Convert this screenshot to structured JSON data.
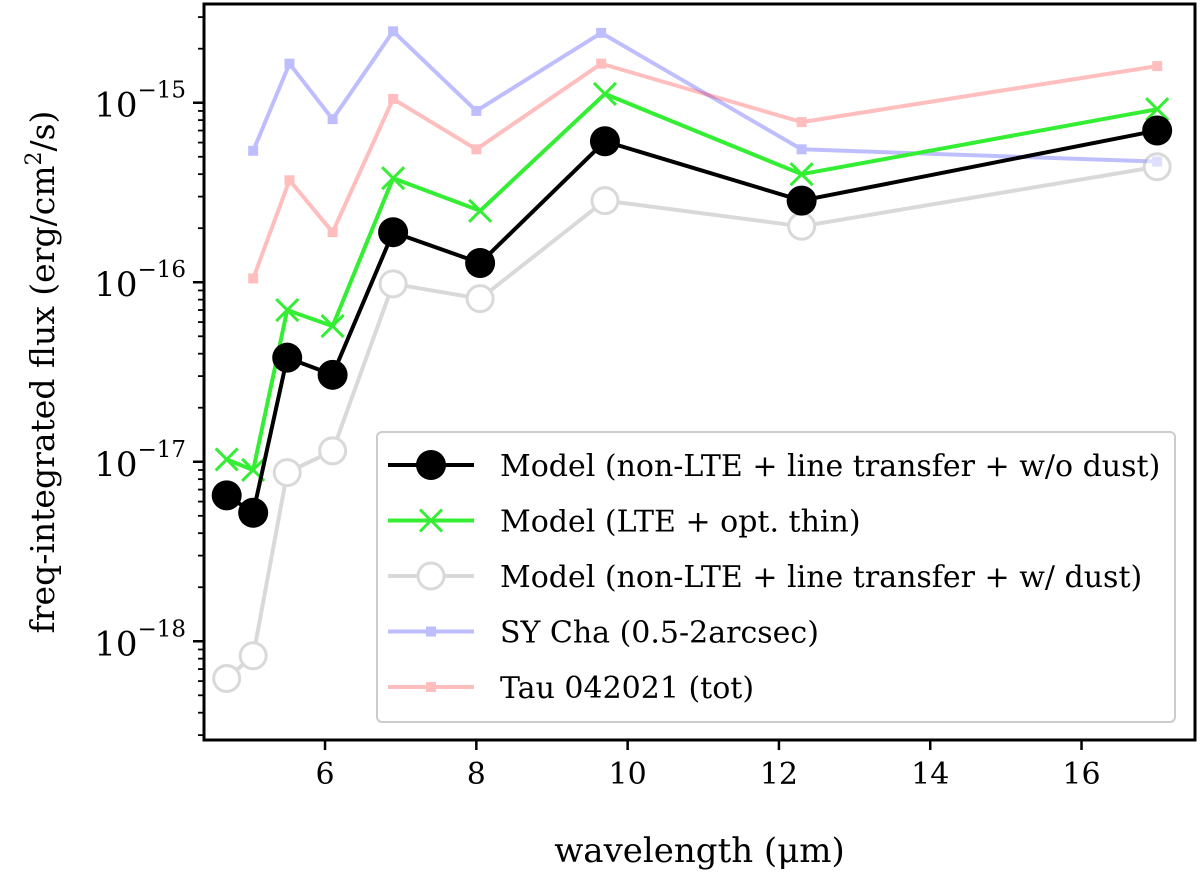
{
  "chart_data": {
    "type": "line",
    "xlabel": "wavelength (μm)",
    "ylabel": "freq-integrated flux (erg/cm²/s)",
    "ylabel_parts": {
      "pre": "freq-integrated flux (erg/cm",
      "sup": "2",
      "post": "/s)"
    },
    "xlim": [
      4.4,
      17.5
    ],
    "ylim_log10": [
      -18.55,
      -14.45
    ],
    "yscale": "log",
    "xticks": [
      6,
      8,
      10,
      12,
      14,
      16
    ],
    "xtick_labels": [
      "6",
      "8",
      "10",
      "12",
      "14",
      "16"
    ],
    "yticks_log10": [
      -18,
      -17,
      -16,
      -15
    ],
    "ytick_labels": [
      {
        "base": "10",
        "exp": "−18"
      },
      {
        "base": "10",
        "exp": "−17"
      },
      {
        "base": "10",
        "exp": "−16"
      },
      {
        "base": "10",
        "exp": "−15"
      }
    ],
    "grid": false,
    "legend_position": "lower right",
    "series": [
      {
        "name": "SY Cha (0.5-2arcsec)",
        "color": "#0000ff",
        "opacity": 0.25,
        "marker": "square",
        "x": [
          5.05,
          5.53,
          6.1,
          6.9,
          8.0,
          9.65,
          12.3,
          17.0
        ],
        "y": [
          5.4e-16,
          1.65e-15,
          8.1e-16,
          2.5e-15,
          9e-16,
          2.45e-15,
          5.5e-16,
          4.7e-16
        ]
      },
      {
        "name": "Tau 042021 (tot)",
        "color": "#ff0000",
        "opacity": 0.25,
        "marker": "square",
        "x": [
          5.05,
          5.53,
          6.1,
          6.9,
          8.0,
          9.65,
          12.3,
          17.0
        ],
        "y": [
          1.05e-16,
          3.7e-16,
          1.9e-16,
          1.05e-15,
          5.5e-16,
          1.65e-15,
          7.8e-16,
          1.6e-15
        ]
      },
      {
        "name": "Model (non-LTE + line transfer + w/ dust)",
        "color": "#b4b4b4",
        "opacity": 0.5,
        "marker": "open-circle",
        "x": [
          4.7,
          5.05,
          5.5,
          6.1,
          6.9,
          8.05,
          9.7,
          12.3,
          17.0
        ],
        "y": [
          6.2e-19,
          8.3e-19,
          8.7e-18,
          1.15e-17,
          9.8e-17,
          8.1e-17,
          2.85e-16,
          2.05e-16,
          4.4e-16
        ]
      },
      {
        "name": "Model (LTE + opt. thin)",
        "color": "#33ee33",
        "opacity": 1,
        "marker": "x",
        "x": [
          4.7,
          5.05,
          5.5,
          6.1,
          6.9,
          8.05,
          9.7,
          12.3,
          17.0
        ],
        "y": [
          1.03e-17,
          9e-18,
          7e-17,
          5.7e-17,
          3.8e-16,
          2.5e-16,
          1.12e-15,
          4e-16,
          9.2e-16
        ]
      },
      {
        "name": "Model (non-LTE + line transfer + w/o dust)",
        "color": "#000000",
        "opacity": 1,
        "marker": "filled-circle",
        "x": [
          4.7,
          5.05,
          5.5,
          6.1,
          6.9,
          8.05,
          9.7,
          12.3,
          17.0
        ],
        "y": [
          6.5e-18,
          5.2e-18,
          3.8e-17,
          3.05e-17,
          1.9e-16,
          1.28e-16,
          6.1e-16,
          2.85e-16,
          7e-16
        ]
      }
    ],
    "legend_order": [
      "Model (non-LTE + line transfer + w/o dust)",
      "Model (LTE + opt. thin)",
      "Model (non-LTE + line transfer + w/ dust)",
      "SY Cha (0.5-2arcsec)",
      "Tau 042021 (tot)"
    ]
  }
}
